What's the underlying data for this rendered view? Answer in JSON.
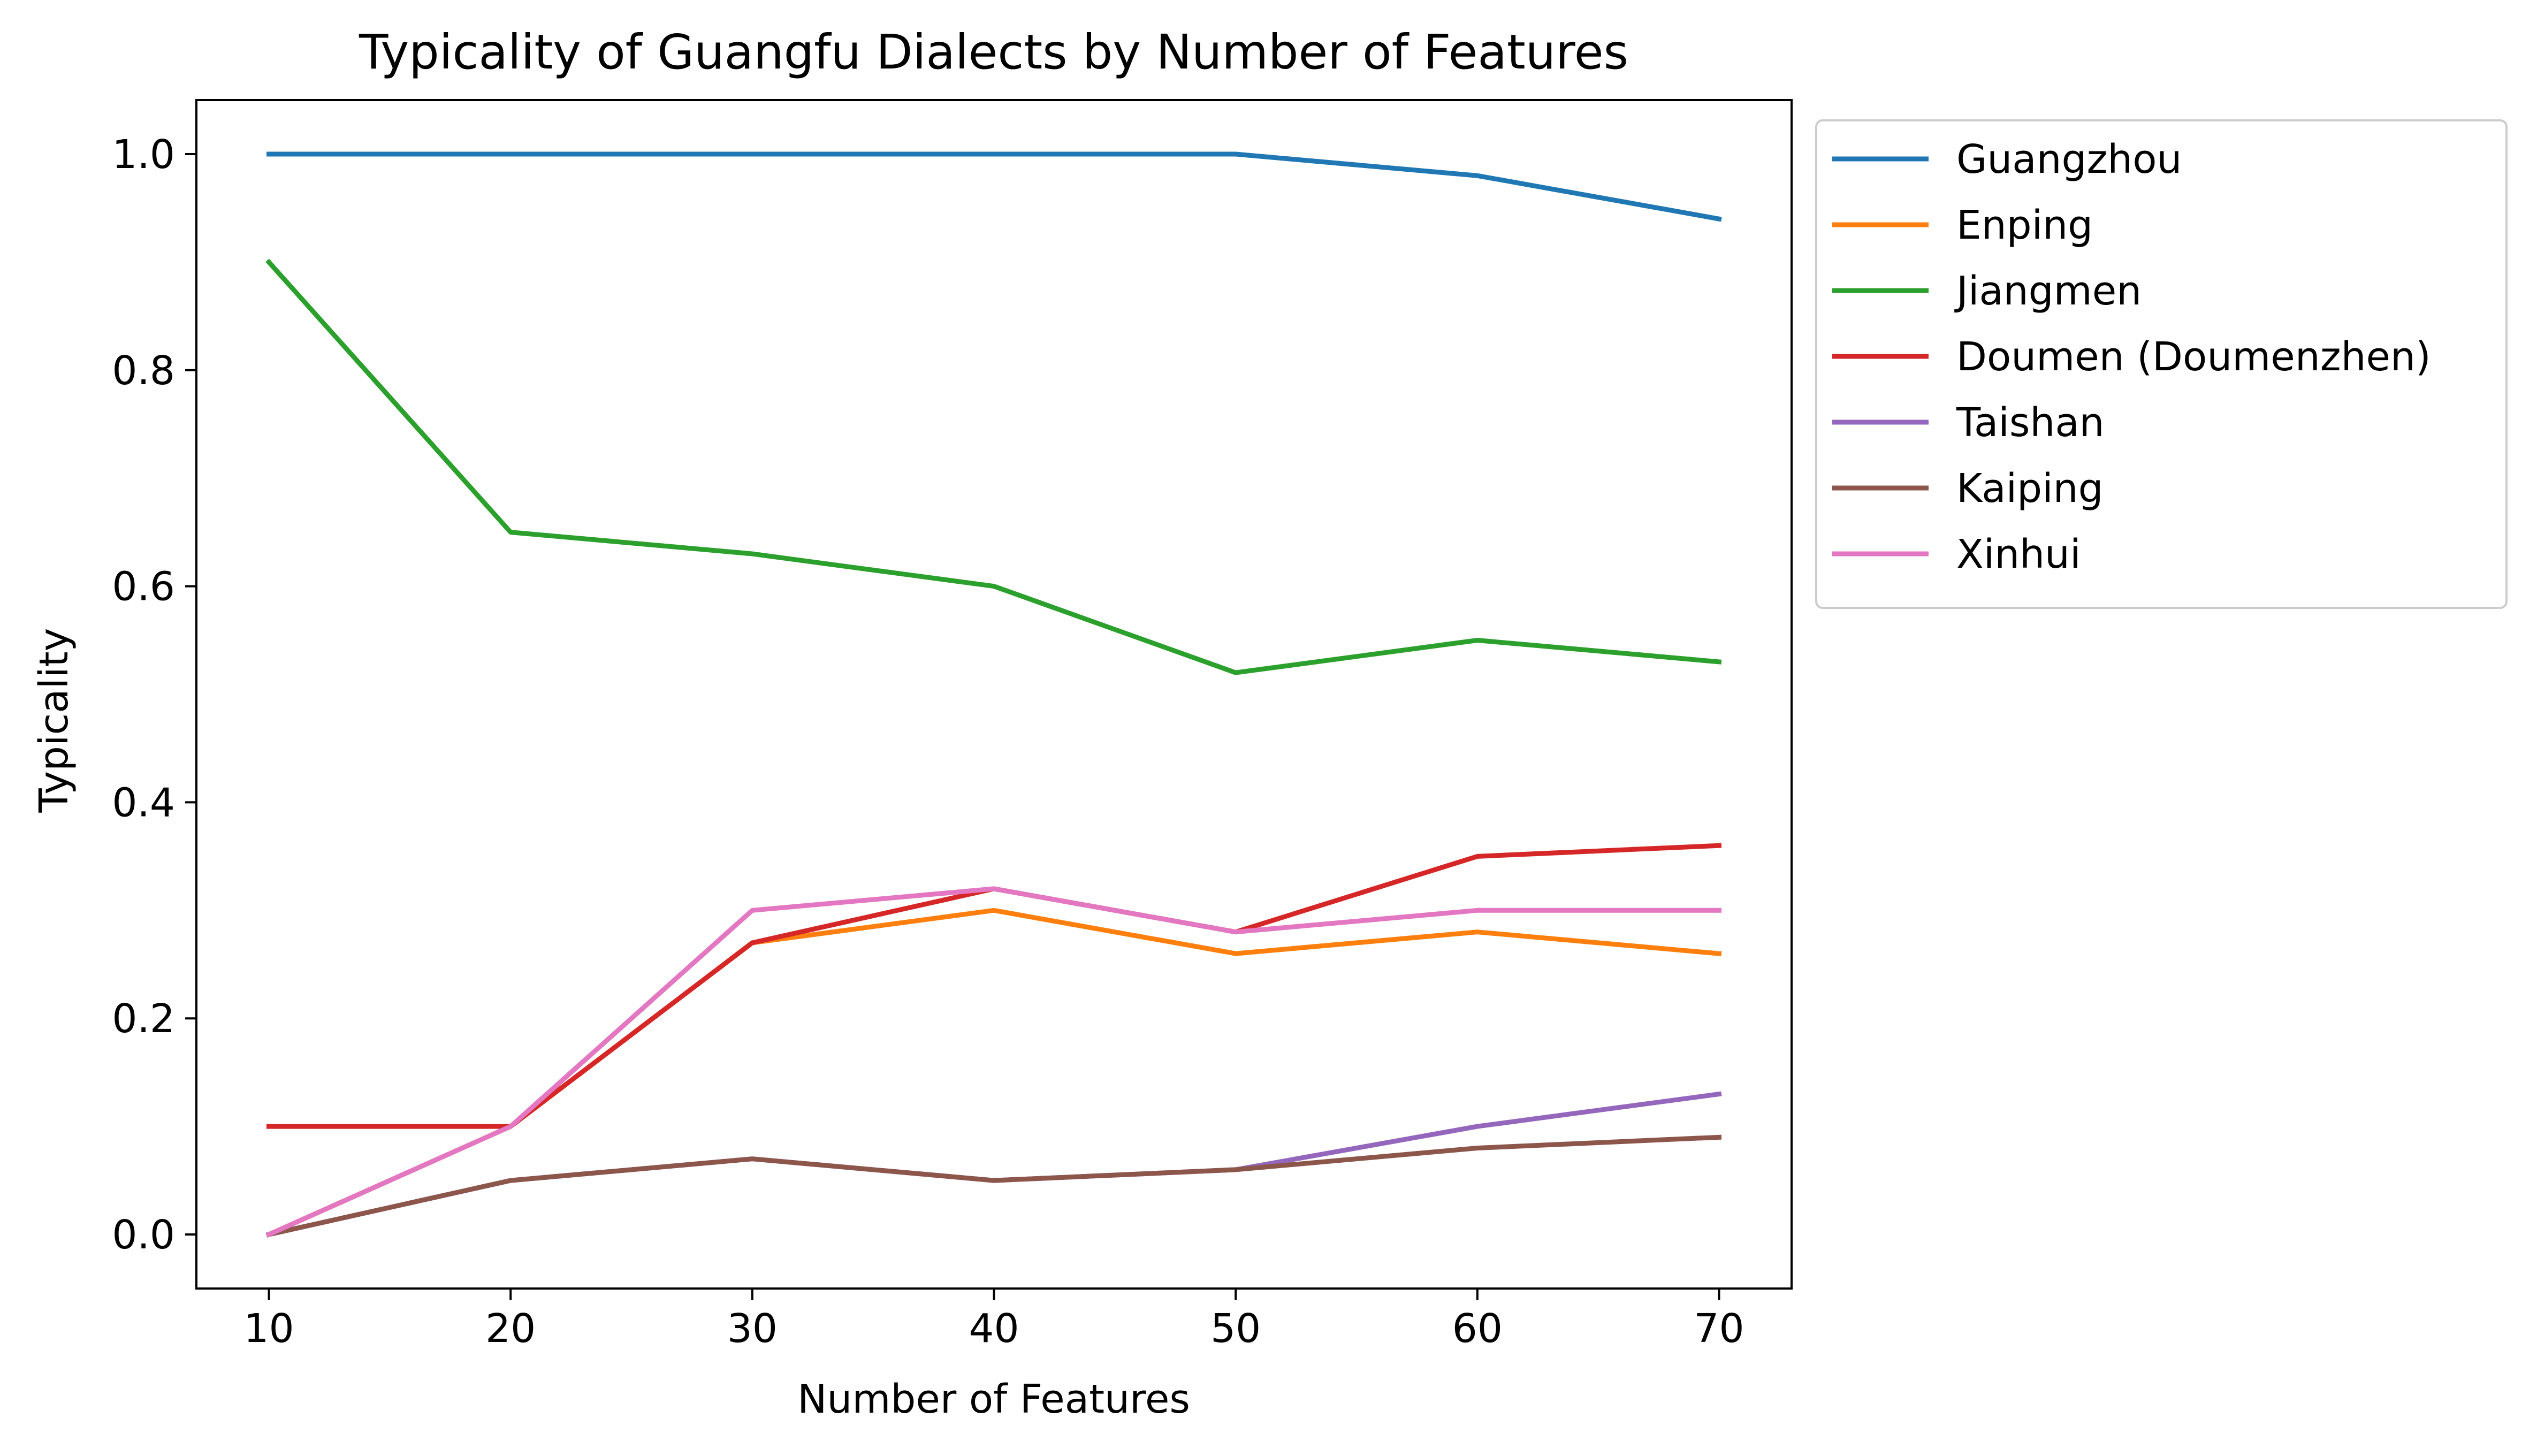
{
  "chart_data": {
    "type": "line",
    "title": "Typicality of Guangfu Dialects by Number of Features",
    "xlabel": "Number of Features",
    "ylabel": "Typicality",
    "x": [
      10,
      20,
      30,
      40,
      50,
      60,
      70
    ],
    "xlim": [
      7,
      73
    ],
    "ylim": [
      -0.05,
      1.05
    ],
    "xticks": [
      "10",
      "20",
      "30",
      "40",
      "50",
      "60",
      "70"
    ],
    "yticks": [
      "0.0",
      "0.2",
      "0.4",
      "0.6",
      "0.8",
      "1.0"
    ],
    "grid": false,
    "legend_position": "outside-right",
    "series": [
      {
        "name": "Guangzhou",
        "color": "#1f77b4",
        "values": [
          1.0,
          1.0,
          1.0,
          1.0,
          1.0,
          0.98,
          0.94
        ]
      },
      {
        "name": "Enping",
        "color": "#ff7f0e",
        "values": [
          0.0,
          0.1,
          0.27,
          0.3,
          0.26,
          0.28,
          0.26
        ]
      },
      {
        "name": "Jiangmen",
        "color": "#2ca02c",
        "values": [
          0.9,
          0.65,
          0.63,
          0.6,
          0.52,
          0.55,
          0.53
        ]
      },
      {
        "name": "Doumen (Doumenzhen)",
        "color": "#d62728",
        "values": [
          0.1,
          0.1,
          0.27,
          0.32,
          0.28,
          0.35,
          0.36
        ]
      },
      {
        "name": "Taishan",
        "color": "#9467bd",
        "values": [
          0.0,
          0.05,
          0.07,
          0.05,
          0.06,
          0.1,
          0.13
        ]
      },
      {
        "name": "Kaiping",
        "color": "#8c564b",
        "values": [
          0.0,
          0.05,
          0.07,
          0.05,
          0.06,
          0.08,
          0.09
        ]
      },
      {
        "name": "Xinhui",
        "color": "#e377c2",
        "values": [
          0.0,
          0.1,
          0.3,
          0.32,
          0.28,
          0.3,
          0.3
        ]
      }
    ]
  }
}
